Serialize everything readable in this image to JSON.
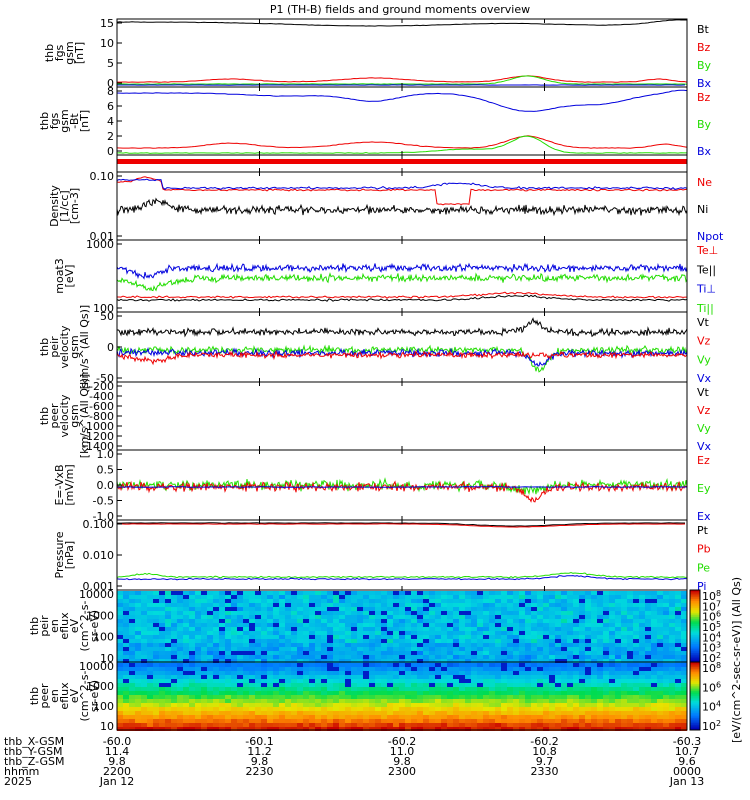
{
  "title": "P1 (TH-B) fields and ground moments overview",
  "colors": {
    "black": "#000000",
    "red": "#ee0000",
    "green": "#22dd00",
    "blue": "#0000dd"
  },
  "panels": [
    {
      "ylabel": [
        "thb",
        "fgs",
        "gsm",
        "[nT]"
      ],
      "ticks": [
        "15",
        "10",
        "5",
        "0"
      ],
      "legend": [
        [
          "Bt",
          "black"
        ],
        [
          "Bz",
          "red"
        ],
        [
          "By",
          "green"
        ],
        [
          "Bx",
          "blue"
        ]
      ]
    },
    {
      "ylabel": [
        "thb",
        "fgs",
        "gsm",
        "-Bt",
        "[nT]"
      ],
      "ticks": [
        "8",
        "6",
        "4",
        "2",
        "0"
      ],
      "legend": [
        [
          "Bz",
          "red"
        ],
        [
          "By",
          "green"
        ],
        [
          "Bx",
          "blue"
        ]
      ]
    },
    {
      "ylabel": [],
      "ticks": [],
      "legend": []
    },
    {
      "ylabel": [
        "Density",
        "[1/cc]",
        "[cm-3]"
      ],
      "ticks": [
        "0.10",
        "0.01"
      ],
      "legend": [
        [
          "Ne",
          "red"
        ],
        [
          "Ni",
          "black"
        ],
        [
          "Npot",
          "blue"
        ]
      ]
    },
    {
      "ylabel": [
        "moat3",
        "[eV]"
      ],
      "ticks": [
        "1000",
        "100"
      ],
      "legend": [
        [
          "Te⊥",
          "red"
        ],
        [
          "Te||",
          "black"
        ],
        [
          "Ti⊥",
          "blue"
        ],
        [
          "Ti||",
          "green"
        ]
      ]
    },
    {
      "ylabel": [
        "thb",
        "peir",
        "velocity",
        "gsm",
        "[km/s^(All Qs)]"
      ],
      "ticks": [
        "50",
        "0",
        "-50"
      ],
      "legend": [
        [
          "Vt",
          "black"
        ],
        [
          "Vz",
          "red"
        ],
        [
          "Vy",
          "green"
        ],
        [
          "Vx",
          "blue"
        ]
      ]
    },
    {
      "ylabel": [
        "thb",
        "peer",
        "velocity",
        "gsm",
        "[km/s^(All Qs)]"
      ],
      "ticks": [
        "-200",
        "-400",
        "-600",
        "-800",
        "-1000",
        "-1200",
        "-1400"
      ],
      "legend": [
        [
          "Vt",
          "black"
        ],
        [
          "Vz",
          "red"
        ],
        [
          "Vy",
          "green"
        ],
        [
          "Vx",
          "blue"
        ]
      ]
    },
    {
      "ylabel": [
        "E=-VxB",
        "[mV/m]"
      ],
      "ticks": [
        "1.0",
        "0.5",
        "0.0",
        "-0.5",
        "-1.0"
      ],
      "legend": [
        [
          "Ez",
          "red"
        ],
        [
          "Ey",
          "green"
        ],
        [
          "Ex",
          "blue"
        ]
      ]
    },
    {
      "ylabel": [
        "Pressure",
        "[nPa]"
      ],
      "ticks": [
        "0.100",
        "0.010",
        "0.001"
      ],
      "legend": [
        [
          "Pt",
          "black"
        ],
        [
          "Pb",
          "red"
        ],
        [
          "Pe",
          "green"
        ],
        [
          "Pi",
          "blue"
        ]
      ]
    },
    {
      "ylabel": [
        "thb",
        "peir",
        "en",
        "eflux",
        "eV",
        "(cm^2-s-",
        "sr-eV)"
      ],
      "ticks": [
        "10000",
        "1000",
        "100",
        "10"
      ],
      "legend": []
    },
    {
      "ylabel": [
        "thb",
        "peer",
        "en",
        "eflux",
        "eV",
        "(cm^2-s-",
        "sr-eV)"
      ],
      "ticks": [
        "10000",
        "1000",
        "100",
        "10"
      ],
      "legend": []
    }
  ],
  "colorbar": {
    "label": "[eV/(cm^2-sec-sr-eV)] (All Qs)",
    "ticks_top": [
      "10^8",
      "10^7",
      "10^6",
      "10^5",
      "10^4",
      "10^3",
      "10^2"
    ],
    "ticks_bottom": [
      "10^8",
      "10^6",
      "10^4",
      "10^2"
    ]
  },
  "xaxis": {
    "row_labels": [
      "thb_X-GSM",
      "thb_Y-GSM",
      "thb_Z-GSM",
      "hhmm",
      "2025"
    ],
    "columns": [
      [
        "-60.0",
        "11.4",
        "9.8",
        "2200",
        "Jan 12"
      ],
      [
        "-60.1",
        "11.2",
        "9.8",
        "2230",
        ""
      ],
      [
        "-60.2",
        "11.0",
        "9.8",
        "2300",
        ""
      ],
      [
        "-60.2",
        "10.8",
        "9.7",
        "2330",
        ""
      ],
      [
        "-60.3",
        "10.7",
        "9.6",
        "0000",
        "Jan 13"
      ]
    ]
  },
  "chart_data": {
    "type": "line",
    "x_range": [
      "2025-01-12 22:00",
      "2025-01-13 00:00"
    ],
    "series_summary": [
      {
        "panel": 0,
        "name": "Bt",
        "approx_values": [
          15.5,
          14.0,
          13.0,
          13.5,
          16.0
        ]
      },
      {
        "panel": 0,
        "name": "Bz",
        "approx_values": [
          0.3,
          1.0,
          1.2,
          1.5,
          0.5
        ]
      },
      {
        "panel": 1,
        "name": "Bx",
        "approx_values": [
          8.3,
          7.5,
          7.0,
          5.0,
          8.5
        ]
      },
      {
        "panel": 1,
        "name": "Bz",
        "approx_values": [
          0.5,
          1.0,
          1.2,
          2.0,
          0.5
        ]
      },
      {
        "panel": 3,
        "name": "Ne",
        "approx_values": [
          0.1,
          0.1,
          0.1,
          0.09,
          0.1
        ]
      },
      {
        "panel": 3,
        "name": "Ni",
        "approx_values": [
          0.04,
          0.03,
          0.03,
          0.03,
          0.03
        ]
      },
      {
        "panel": 4,
        "name": "Ti⊥",
        "approx_values": [
          300,
          350,
          350,
          350,
          350
        ]
      },
      {
        "panel": 4,
        "name": "Te||",
        "approx_values": [
          60,
          70,
          75,
          80,
          80
        ]
      },
      {
        "panel": 8,
        "name": "Pt",
        "approx_values": [
          0.1,
          0.1,
          0.09,
          0.08,
          0.1
        ]
      }
    ]
  }
}
